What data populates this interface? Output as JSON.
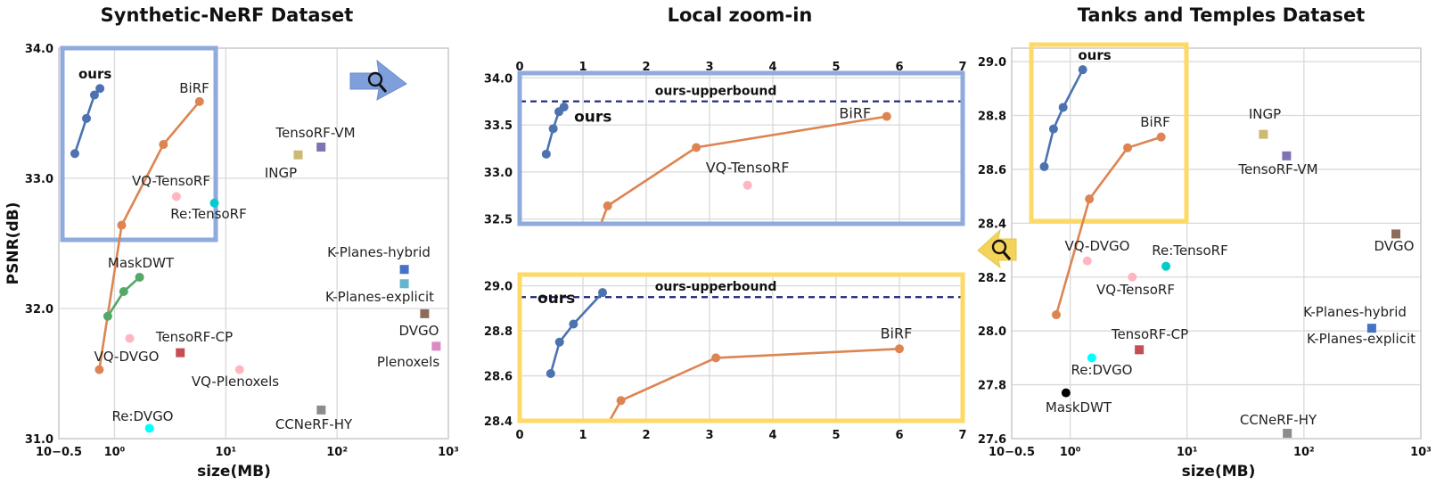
{
  "colors": {
    "ours": "#4c72b0",
    "birf": "#dd8452",
    "maskdwt": "#55a868",
    "blue_box": "#8faadc",
    "yellow_box": "#ffd966",
    "TensoRF-VM": "#8172b3",
    "INGP": "#ccb974",
    "VQ-TensoRF": "#ffb6c1",
    "Re:TensoRF": "#00cccc",
    "K-Planes-hybrid": "#4472c4",
    "K-Planes-explicit": "#64b5cd",
    "DVGO": "#8c6d57",
    "Plenoxels": "#da8bc3",
    "TensoRF-CP": "#c44e52",
    "VQ-Plenoxels": "#ffb6c1",
    "CCNeRF-HY": "#8c8c8c",
    "Re:DVGO": "#00ffff",
    "VQ-DVGO": "#ffb6c1"
  },
  "icons": {
    "arrow": "magnifier-arrow-icon"
  },
  "chart_data": [
    {
      "type": "scatter",
      "title": "Synthetic-NeRF Dataset",
      "xlabel": "size(MB)",
      "ylabel": "PSNR(dB)",
      "xscale": "log",
      "xlim": [
        0.316,
        1000
      ],
      "ylim": [
        31.0,
        34.0
      ],
      "xticks": [
        {
          "v": 0.316,
          "label": "10−0.5"
        },
        {
          "v": 1,
          "label": "10⁰"
        },
        {
          "v": 10,
          "label": "10¹"
        },
        {
          "v": 100,
          "label": "10²"
        },
        {
          "v": 1000,
          "label": "10³"
        }
      ],
      "yticks": [
        {
          "v": 31.0,
          "label": "31.0"
        },
        {
          "v": 32.0,
          "label": "32.0"
        },
        {
          "v": 33.0,
          "label": "33.0"
        },
        {
          "v": 34.0,
          "label": "34.0"
        }
      ],
      "grid": true,
      "lines": [
        {
          "name": "ours",
          "label_pos": "above-left",
          "points": [
            [
              0.44,
              33.19
            ],
            [
              0.56,
              33.46
            ],
            [
              0.66,
              33.64
            ],
            [
              0.74,
              33.69
            ]
          ]
        },
        {
          "name": "BiRF",
          "points": [
            [
              0.73,
              31.53
            ],
            [
              1.16,
              32.64
            ],
            [
              2.75,
              33.26
            ],
            [
              5.8,
              33.59
            ]
          ]
        },
        {
          "name": "MaskDWT",
          "points": [
            [
              0.87,
              31.94
            ],
            [
              1.21,
              32.13
            ],
            [
              1.68,
              32.24
            ]
          ]
        }
      ],
      "points": [
        {
          "name": "TensoRF-VM",
          "x": 71.8,
          "y": 33.24,
          "marker": "square"
        },
        {
          "name": "INGP",
          "x": 44.7,
          "y": 33.18,
          "marker": "square"
        },
        {
          "name": "VQ-TensoRF",
          "x": 3.6,
          "y": 32.86,
          "marker": "circle"
        },
        {
          "name": "Re:TensoRF",
          "x": 7.9,
          "y": 32.81,
          "marker": "circle"
        },
        {
          "name": "K-Planes-hybrid",
          "x": 402,
          "y": 32.3,
          "marker": "square"
        },
        {
          "name": "K-Planes-explicit",
          "x": 402,
          "y": 32.19,
          "marker": "square"
        },
        {
          "name": "DVGO",
          "x": 612,
          "y": 31.96,
          "marker": "square"
        },
        {
          "name": "Plenoxels",
          "x": 778,
          "y": 31.71,
          "marker": "square"
        },
        {
          "name": "TensoRF-CP",
          "x": 3.9,
          "y": 31.66,
          "marker": "square"
        },
        {
          "name": "VQ-DVGO",
          "x": 1.37,
          "y": 31.77,
          "marker": "circle"
        },
        {
          "name": "VQ-Plenoxels",
          "x": 13.3,
          "y": 31.53,
          "marker": "circle"
        },
        {
          "name": "CCNeRF-HY",
          "x": 72,
          "y": 31.22,
          "marker": "square"
        },
        {
          "name": "Re:DVGO",
          "x": 2.06,
          "y": 31.08,
          "marker": "circle"
        }
      ]
    },
    {
      "type": "line",
      "title": "Local zoom-in",
      "subplots": [
        {
          "xlim": [
            0,
            7
          ],
          "ylim": [
            32.45,
            34.05
          ],
          "yticks": [
            32.5,
            33.0,
            33.5,
            34.0
          ],
          "xticks_top": [
            0,
            1,
            2,
            3,
            4,
            5,
            6,
            7
          ],
          "upperbound": {
            "label": "ours-upperbound",
            "y": 33.75
          },
          "lines": [
            {
              "name": "ours",
              "points": [
                [
                  0.42,
                  33.19
                ],
                [
                  0.53,
                  33.46
                ],
                [
                  0.62,
                  33.64
                ],
                [
                  0.7,
                  33.69
                ]
              ]
            },
            {
              "name": "BiRF",
              "points": [
                [
                  1.2,
                  32.3
                ],
                [
                  1.39,
                  32.64
                ],
                [
                  2.79,
                  33.26
                ],
                [
                  5.8,
                  33.59
                ]
              ]
            }
          ],
          "points": [
            {
              "name": "VQ-TensoRF",
              "x": 3.6,
              "y": 32.86
            }
          ]
        },
        {
          "xlim": [
            0,
            7
          ],
          "ylim": [
            28.4,
            29.05
          ],
          "yticks": [
            28.4,
            28.6,
            28.8,
            29.0
          ],
          "xticks": [
            0,
            1,
            2,
            3,
            4,
            5,
            6,
            7
          ],
          "upperbound": {
            "label": "ours-upperbound",
            "y": 28.95
          },
          "lines": [
            {
              "name": "ours",
              "points": [
                [
                  0.49,
                  28.61
                ],
                [
                  0.63,
                  28.75
                ],
                [
                  0.85,
                  28.83
                ],
                [
                  1.31,
                  28.97
                ]
              ]
            },
            {
              "name": "BiRF",
              "points": [
                [
                  1.4,
                  28.39
                ],
                [
                  1.6,
                  28.49
                ],
                [
                  3.1,
                  28.68
                ],
                [
                  6.0,
                  28.72
                ]
              ]
            }
          ]
        }
      ]
    },
    {
      "type": "scatter",
      "title": "Tanks and Temples Dataset",
      "xlabel": "size(MB)",
      "xscale": "log",
      "xlim": [
        0.316,
        1000
      ],
      "ylim": [
        27.6,
        29.05
      ],
      "xticks": [
        {
          "v": 0.316,
          "label": "10−0.5"
        },
        {
          "v": 1,
          "label": "10⁰"
        },
        {
          "v": 10,
          "label": "10¹"
        },
        {
          "v": 100,
          "label": "10²"
        },
        {
          "v": 1000,
          "label": "10³"
        }
      ],
      "yticks": [
        {
          "v": 27.6,
          "label": "27.6"
        },
        {
          "v": 27.8,
          "label": "27.8"
        },
        {
          "v": 28.0,
          "label": "28.0"
        },
        {
          "v": 28.2,
          "label": "28.2"
        },
        {
          "v": 28.4,
          "label": "28.4"
        },
        {
          "v": 28.6,
          "label": "28.6"
        },
        {
          "v": 28.8,
          "label": "28.8"
        },
        {
          "v": 29.0,
          "label": "29.0"
        }
      ],
      "grid": true,
      "lines": [
        {
          "name": "ours",
          "points": [
            [
              0.6,
              28.61
            ],
            [
              0.72,
              28.75
            ],
            [
              0.87,
              28.83
            ],
            [
              1.28,
              28.97
            ]
          ]
        },
        {
          "name": "BiRF",
          "points": [
            [
              0.76,
              28.06
            ],
            [
              1.46,
              28.49
            ],
            [
              3.1,
              28.68
            ],
            [
              6.0,
              28.72
            ]
          ]
        }
      ],
      "points": [
        {
          "name": "INGP",
          "x": 45,
          "y": 28.73,
          "marker": "square"
        },
        {
          "name": "TensoRF-VM",
          "x": 71,
          "y": 28.65,
          "marker": "square"
        },
        {
          "name": "DVGO",
          "x": 612,
          "y": 28.36,
          "marker": "square"
        },
        {
          "name": "VQ-DVGO",
          "x": 1.4,
          "y": 28.26,
          "marker": "circle"
        },
        {
          "name": "Re:TensoRF",
          "x": 6.6,
          "y": 28.24,
          "marker": "circle"
        },
        {
          "name": "VQ-TensoRF",
          "x": 3.4,
          "y": 28.2,
          "marker": "circle"
        },
        {
          "name": "K-Planes-hybrid",
          "x": 380,
          "y": 28.01,
          "marker": "square"
        },
        {
          "name": "TensoRF-CP",
          "x": 3.9,
          "y": 27.93,
          "marker": "square"
        },
        {
          "name": "Re:DVGO",
          "x": 1.53,
          "y": 27.9,
          "marker": "circle"
        },
        {
          "name": "MaskDWT",
          "x": 0.92,
          "y": 27.77,
          "marker": "circle"
        },
        {
          "name": "CCNeRF-HY",
          "x": 72,
          "y": 27.62,
          "marker": "square"
        }
      ]
    }
  ]
}
